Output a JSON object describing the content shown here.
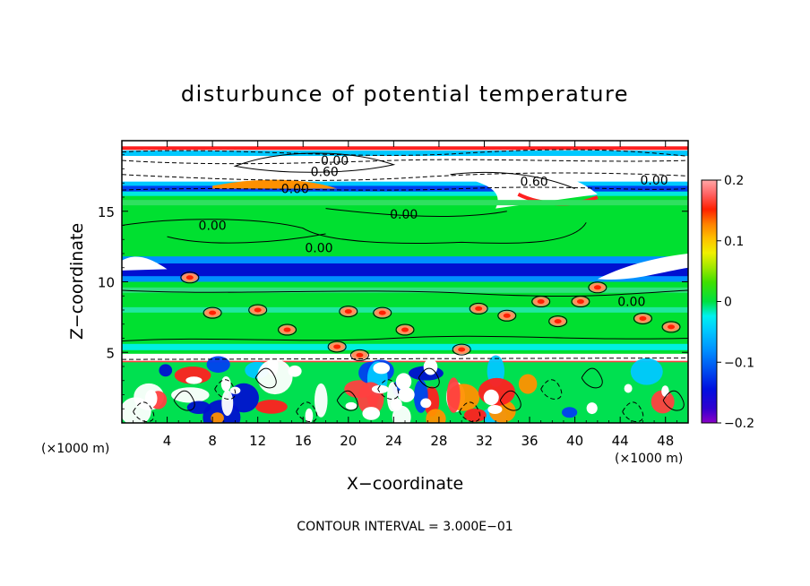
{
  "chart_data": {
    "type": "heatmap",
    "title": "disturbunce of potential temperature",
    "xlabel": "X−coordinate",
    "ylabel": "Z−coordinate",
    "x_unit_left": "(×1000 m)",
    "x_unit_right": "(×1000 m)",
    "xlim": [
      0,
      50
    ],
    "ylim": [
      0,
      20
    ],
    "x_ticks": [
      4,
      8,
      12,
      16,
      20,
      24,
      28,
      32,
      36,
      40,
      44,
      48
    ],
    "y_ticks": [
      5,
      10,
      15
    ],
    "colorbar": {
      "range": [
        -0.2,
        0.2
      ],
      "tick_values": [
        0.2,
        0.1,
        0,
        -0.1,
        -0.2
      ],
      "tick_labels": [
        "0.2",
        "0.1",
        "0",
        "−0.1",
        "−0.2"
      ],
      "colors": [
        "#8a00c8",
        "#3000d0",
        "#0010e0",
        "#0050f0",
        "#0090ff",
        "#00c8ff",
        "#00f0f0",
        "#00e8a0",
        "#00e040",
        "#40e000",
        "#a0e800",
        "#f0f000",
        "#ffc000",
        "#ff8000",
        "#ff4000",
        "#ff0000",
        "#ff6060",
        "#ffa0a0"
      ]
    },
    "contour_interval_text": "CONTOUR INTERVAL = 3.000E−01",
    "contour_labels": [
      {
        "text": "0.00",
        "x": 18.8,
        "z": 18.6
      },
      {
        "text": "0.60",
        "x": 17.9,
        "z": 17.8
      },
      {
        "text": "0.00",
        "x": 15.3,
        "z": 16.6
      },
      {
        "text": "0.60",
        "x": 36.4,
        "z": 17.1
      },
      {
        "text": "0.00",
        "x": 47.0,
        "z": 17.2
      },
      {
        "text": "0.00",
        "x": 8.0,
        "z": 14.0
      },
      {
        "text": "0.00",
        "x": 24.9,
        "z": 14.8
      },
      {
        "text": "0.00",
        "x": 17.4,
        "z": 12.4
      },
      {
        "text": "0.00",
        "x": 45.0,
        "z": 8.6
      }
    ],
    "bands": [
      {
        "z0": 0,
        "z1": 4.4,
        "value": -0.05,
        "note": "turbulent lower layer"
      },
      {
        "z0": 4.4,
        "z1": 4.8,
        "value": 0.2
      },
      {
        "z0": 4.8,
        "z1": 10.0,
        "value": 0.02
      },
      {
        "z0": 10.0,
        "z1": 11.4,
        "value": -0.16
      },
      {
        "z0": 11.4,
        "z1": 16.2,
        "value": 0.02
      },
      {
        "z0": 16.2,
        "z1": 20.0,
        "value": -0.05
      }
    ]
  }
}
